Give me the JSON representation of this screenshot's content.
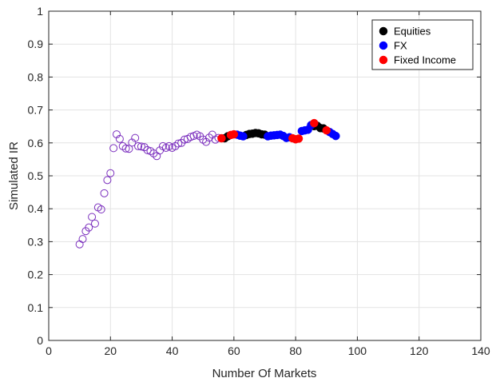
{
  "chart_data": {
    "type": "scatter",
    "xlabel": "Number Of Markets",
    "ylabel": "Simulated IR",
    "xlim": [
      0,
      140
    ],
    "ylim": [
      0,
      1
    ],
    "x_ticks": [
      0,
      20,
      40,
      60,
      80,
      100,
      120,
      140
    ],
    "y_ticks": [
      0,
      0.1,
      0.2,
      0.3,
      0.4,
      0.5,
      0.6,
      0.7,
      0.8,
      0.9,
      1
    ],
    "grid": true,
    "legend_position": "top-right",
    "series": [
      {
        "name": "",
        "marker": "open-circle",
        "color": "#7b2fbe",
        "points": [
          [
            10,
            0.292
          ],
          [
            11,
            0.308
          ],
          [
            12,
            0.332
          ],
          [
            13,
            0.343
          ],
          [
            14,
            0.375
          ],
          [
            15,
            0.355
          ],
          [
            16,
            0.404
          ],
          [
            17,
            0.398
          ],
          [
            18,
            0.447
          ],
          [
            19,
            0.487
          ],
          [
            20,
            0.508
          ],
          [
            21,
            0.584
          ],
          [
            22,
            0.626
          ],
          [
            23,
            0.612
          ],
          [
            24,
            0.59
          ],
          [
            25,
            0.583
          ],
          [
            26,
            0.582
          ],
          [
            27,
            0.601
          ],
          [
            28,
            0.615
          ],
          [
            29,
            0.59
          ],
          [
            30,
            0.589
          ],
          [
            31,
            0.587
          ],
          [
            32,
            0.578
          ],
          [
            33,
            0.575
          ],
          [
            34,
            0.568
          ],
          [
            35,
            0.56
          ],
          [
            36,
            0.577
          ],
          [
            37,
            0.59
          ],
          [
            38,
            0.585
          ],
          [
            39,
            0.59
          ],
          [
            40,
            0.585
          ],
          [
            41,
            0.59
          ],
          [
            42,
            0.598
          ],
          [
            43,
            0.6
          ],
          [
            44,
            0.61
          ],
          [
            45,
            0.612
          ],
          [
            46,
            0.618
          ],
          [
            47,
            0.621
          ],
          [
            48,
            0.625
          ],
          [
            49,
            0.62
          ],
          [
            50,
            0.61
          ],
          [
            51,
            0.603
          ],
          [
            52,
            0.616
          ],
          [
            53,
            0.625
          ],
          [
            54,
            0.61
          ],
          [
            55,
            0.615
          ]
        ]
      },
      {
        "name": "Equities",
        "marker": "filled-circle",
        "color": "#000000",
        "points": [
          [
            57,
            0.614
          ],
          [
            58,
            0.62
          ],
          [
            64,
            0.624
          ],
          [
            65,
            0.627
          ],
          [
            66,
            0.628
          ],
          [
            67,
            0.63
          ],
          [
            68,
            0.629
          ],
          [
            69,
            0.626
          ],
          [
            70,
            0.625
          ],
          [
            86,
            0.651
          ],
          [
            87,
            0.652
          ],
          [
            88,
            0.645
          ],
          [
            89,
            0.644
          ]
        ]
      },
      {
        "name": "FX",
        "marker": "filled-circle",
        "color": "#0000ff",
        "points": [
          [
            61,
            0.625
          ],
          [
            62,
            0.622
          ],
          [
            63,
            0.62
          ],
          [
            71,
            0.62
          ],
          [
            72,
            0.622
          ],
          [
            73,
            0.623
          ],
          [
            74,
            0.624
          ],
          [
            75,
            0.625
          ],
          [
            76,
            0.621
          ],
          [
            77,
            0.615
          ],
          [
            78,
            0.617
          ],
          [
            82,
            0.636
          ],
          [
            83,
            0.638
          ],
          [
            84,
            0.64
          ],
          [
            85,
            0.654
          ],
          [
            91,
            0.633
          ],
          [
            92,
            0.627
          ],
          [
            93,
            0.621
          ]
        ]
      },
      {
        "name": "Fixed Income",
        "marker": "filled-circle",
        "color": "#ff0000",
        "points": [
          [
            56,
            0.614
          ],
          [
            59,
            0.624
          ],
          [
            60,
            0.626
          ],
          [
            79,
            0.614
          ],
          [
            80,
            0.611
          ],
          [
            81,
            0.613
          ],
          [
            86,
            0.66
          ],
          [
            90,
            0.638
          ]
        ]
      }
    ]
  }
}
